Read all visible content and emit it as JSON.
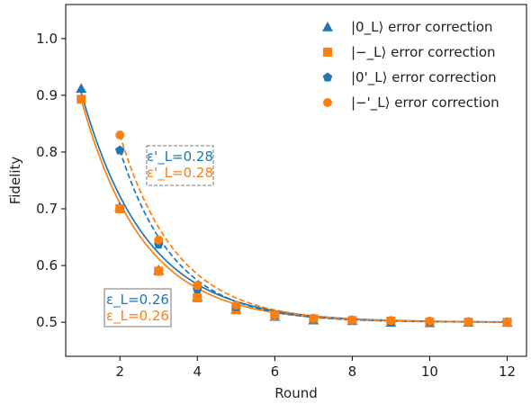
{
  "chart_data": {
    "type": "line",
    "xlabel": "Round",
    "ylabel": "Fidelity",
    "xlim": [
      0.6,
      12.5
    ],
    "ylim": [
      0.44,
      1.06
    ],
    "x_ticks": [
      2,
      4,
      6,
      8,
      10,
      12
    ],
    "x_tick_labels": [
      "2",
      "4",
      "6",
      "8",
      "10",
      "12"
    ],
    "y_ticks": [
      0.5,
      0.6,
      0.7,
      0.8,
      0.9,
      1.0
    ],
    "y_tick_labels": [
      "0.5",
      "0.6",
      "0.7",
      "0.8",
      "0.9",
      "1.0"
    ],
    "grid": false,
    "legend_position": "top-right",
    "colors": {
      "blue": "#1f77b4",
      "orange": "#ff7f0e"
    },
    "series": [
      {
        "name": "|0_L⟩ error correction",
        "marker": "triangle",
        "color": "#1f77b4",
        "x": [
          1,
          2,
          3,
          4,
          5,
          6,
          7,
          8,
          9,
          10,
          11,
          12
        ],
        "values": [
          0.912,
          0.703,
          0.592,
          0.545,
          0.523,
          0.51,
          0.504,
          0.503,
          0.5,
          0.499,
          0.5,
          0.5
        ]
      },
      {
        "name": "|−_L⟩ error correction",
        "marker": "square",
        "color": "#ff7f0e",
        "x": [
          1,
          2,
          3,
          4,
          5,
          6,
          7,
          8,
          9,
          10,
          11,
          12
        ],
        "values": [
          0.893,
          0.7,
          0.59,
          0.543,
          0.522,
          0.511,
          0.506,
          0.503,
          0.502,
          0.5,
          0.5,
          0.5
        ]
      },
      {
        "name": "|0'_L⟩ error correction",
        "marker": "pentagon",
        "color": "#1f77b4",
        "x": [
          2,
          3,
          4,
          5,
          6,
          7,
          8,
          9,
          10,
          11,
          12
        ],
        "values": [
          0.803,
          0.637,
          0.558,
          0.527,
          0.512,
          0.506,
          0.503,
          0.501,
          0.5,
          0.5,
          0.5
        ]
      },
      {
        "name": "|−'_L⟩ error correction",
        "marker": "circle",
        "color": "#ff7f0e",
        "x": [
          2,
          3,
          4,
          5,
          6,
          7,
          8,
          9,
          10,
          11,
          12
        ],
        "values": [
          0.83,
          0.645,
          0.565,
          0.53,
          0.513,
          0.507,
          0.504,
          0.503,
          0.502,
          0.501,
          0.5
        ]
      }
    ],
    "fits": [
      {
        "series": 0,
        "style": "solid",
        "color": "#1f77b4",
        "x_start": 1,
        "x_end": 12,
        "asymptote": 0.5,
        "x0": 1,
        "y0": 0.905,
        "rate": 0.6
      },
      {
        "series": 1,
        "style": "solid",
        "color": "#ff7f0e",
        "x_start": 1,
        "x_end": 12,
        "asymptote": 0.5,
        "x0": 1,
        "y0": 0.893,
        "rate": 0.628
      },
      {
        "series": 2,
        "style": "dashed",
        "color": "#1f77b4",
        "x_start": 2,
        "x_end": 12,
        "asymptote": 0.5,
        "x0": 2,
        "y0": 0.803,
        "rate": 0.705
      },
      {
        "series": 3,
        "style": "dashed",
        "color": "#ff7f0e",
        "x_start": 2,
        "x_end": 12,
        "asymptote": 0.5,
        "x0": 2,
        "y0": 0.83,
        "rate": 0.68
      }
    ],
    "annotations": {
      "solid_box": {
        "blue": "ε_L=0.26",
        "orange": "ε_L=0.26",
        "border": "solid"
      },
      "dashed_box": {
        "blue": "ε'_L=0.28",
        "orange": "ε'_L=0.28",
        "border": "dashed"
      }
    }
  }
}
